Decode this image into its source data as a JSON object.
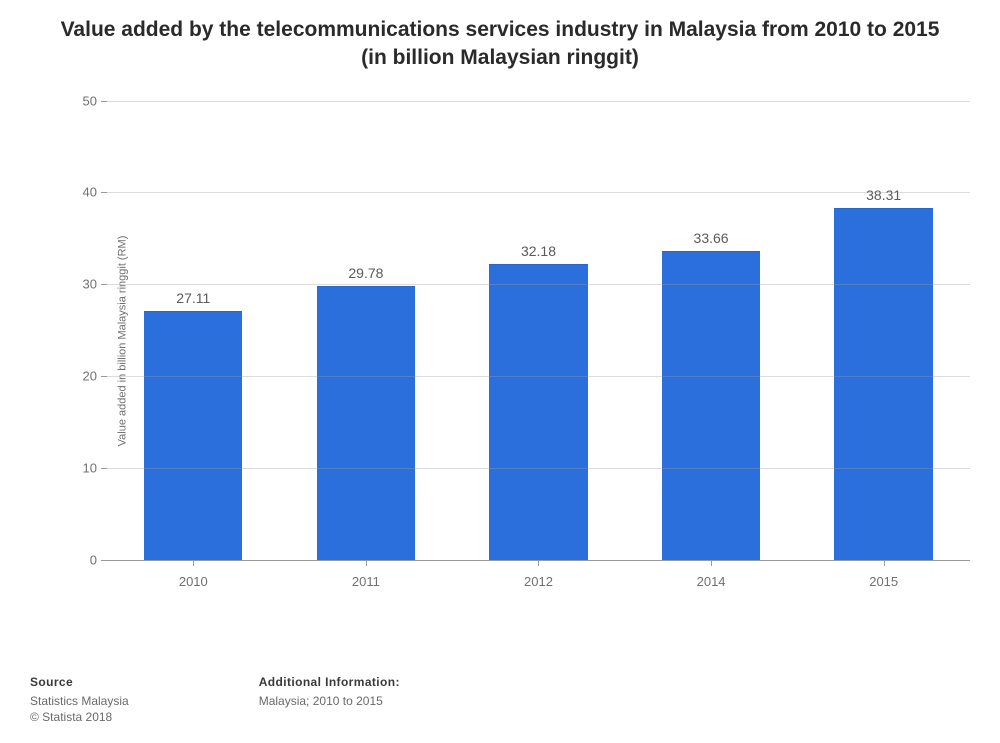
{
  "title": "Value added by the telecommunications services industry in Malaysia from 2010 to 2015 (in billion Malaysian ringgit)",
  "title_fontsize": 21,
  "title_color": "#2a2a2a",
  "chart": {
    "type": "bar",
    "categories": [
      "2010",
      "2011",
      "2012",
      "2014",
      "2015"
    ],
    "values": [
      27.11,
      29.78,
      32.18,
      33.66,
      38.31
    ],
    "value_labels": [
      "27.11",
      "29.78",
      "32.18",
      "33.66",
      "38.31"
    ],
    "bar_color": "#2a6fdb",
    "bar_width": 0.57,
    "ylabel": "Value added in billion Malaysia ringgit (RM)",
    "ylabel_fontsize": 11,
    "ylim": [
      0,
      50
    ],
    "ytick_step": 10,
    "yticks": [
      0,
      10,
      20,
      30,
      40,
      50
    ],
    "tick_font_color": "#707070",
    "tick_fontsize": 13,
    "value_label_color": "#5a5a5a",
    "value_label_fontsize": 14,
    "grid_color": "#9a9a9a",
    "background_color": "#ffffff"
  },
  "footer": {
    "source_heading": "Source",
    "source_line1": "Statistics Malaysia",
    "source_line2": "© Statista 2018",
    "info_heading": "Additional Information:",
    "info_line1": "Malaysia; 2010 to 2015",
    "fontsize": 12
  }
}
